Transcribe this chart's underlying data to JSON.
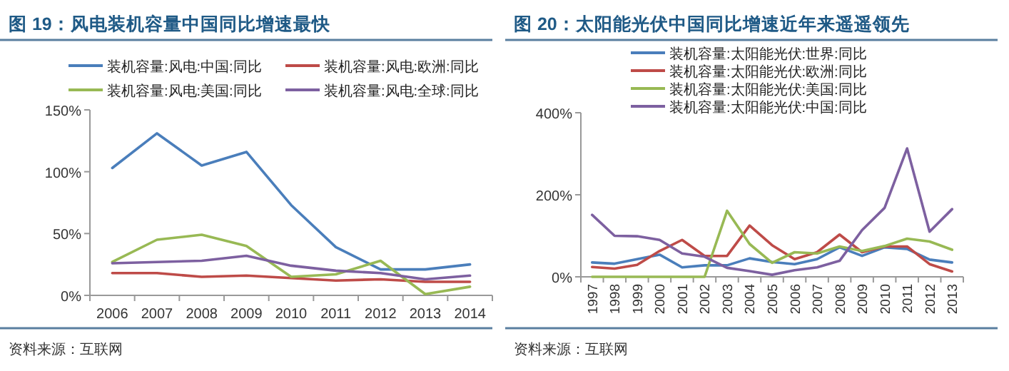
{
  "chart_data": [
    {
      "type": "line",
      "title": "图 19：风电装机容量中国同比增速最快",
      "annotations": [
        "资料来源：互联网"
      ],
      "categories": [
        "2006",
        "2007",
        "2008",
        "2009",
        "2010",
        "2011",
        "2012",
        "2013",
        "2014"
      ],
      "series": [
        {
          "name": "装机容量:风电:中国:同比",
          "color": "#4a7ebb",
          "values": [
            103,
            131,
            105,
            116,
            73,
            39,
            21,
            21,
            25
          ]
        },
        {
          "name": "装机容量:风电:欧洲:同比",
          "color": "#be4b48",
          "values": [
            18,
            18,
            15,
            16,
            14,
            12,
            13,
            11,
            11
          ]
        },
        {
          "name": "装机容量:风电:美国:同比",
          "color": "#98b954",
          "values": [
            27,
            45,
            49,
            40,
            15,
            17,
            28,
            1,
            7
          ]
        },
        {
          "name": "装机容量:风电:全球:同比",
          "color": "#7d60a0",
          "values": [
            26,
            27,
            28,
            32,
            24,
            20,
            18,
            13,
            16
          ]
        }
      ],
      "ylim": [
        0,
        150
      ],
      "yticks": [
        {
          "value": 0,
          "label": "0%"
        },
        {
          "value": 50,
          "label": "50%"
        },
        {
          "value": 100,
          "label": "100%"
        },
        {
          "value": 150,
          "label": "150%"
        }
      ],
      "legend": "top",
      "grid": false,
      "marker": "none",
      "line_style": "solid"
    },
    {
      "type": "line",
      "title": "图 20：太阳能光伏中国同比增速近年来遥遥领先",
      "annotations": [
        "资料来源：互联网"
      ],
      "categories": [
        "1997",
        "1998",
        "1999",
        "2000",
        "2001",
        "2002",
        "2003",
        "2004",
        "2005",
        "2006",
        "2007",
        "2008",
        "2009",
        "2010",
        "2011",
        "2012",
        "2013"
      ],
      "series": [
        {
          "name": "装机容量:太阳能光伏:世界:同比",
          "color": "#4a7ebb",
          "values": [
            35,
            32,
            43,
            54,
            23,
            28,
            28,
            45,
            36,
            31,
            43,
            72,
            51,
            72,
            68,
            42,
            35
          ]
        },
        {
          "name": "装机容量:太阳能光伏:欧洲:同比",
          "color": "#be4b48",
          "values": [
            24,
            20,
            29,
            63,
            90,
            51,
            51,
            125,
            77,
            43,
            60,
            103,
            60,
            74,
            74,
            31,
            13
          ]
        },
        {
          "name": "装机容量:太阳能光伏:美国:同比",
          "color": "#98b954",
          "values": [
            0,
            0,
            0,
            0,
            0,
            0,
            161,
            80,
            34,
            60,
            57,
            74,
            63,
            75,
            93,
            86,
            66
          ]
        },
        {
          "name": "装机容量:太阳能光伏:中国:同比",
          "color": "#7d60a0",
          "values": [
            151,
            100,
            99,
            90,
            57,
            49,
            22,
            14,
            5,
            16,
            23,
            39,
            114,
            168,
            313,
            110,
            165
          ]
        }
      ],
      "ylim": [
        0,
        400
      ],
      "yticks": [
        {
          "value": 0,
          "label": "0%"
        },
        {
          "value": 200,
          "label": "200%"
        },
        {
          "value": 400,
          "label": "400%"
        }
      ],
      "legend": "top",
      "grid": false,
      "marker": "none",
      "line_style": "solid"
    }
  ]
}
